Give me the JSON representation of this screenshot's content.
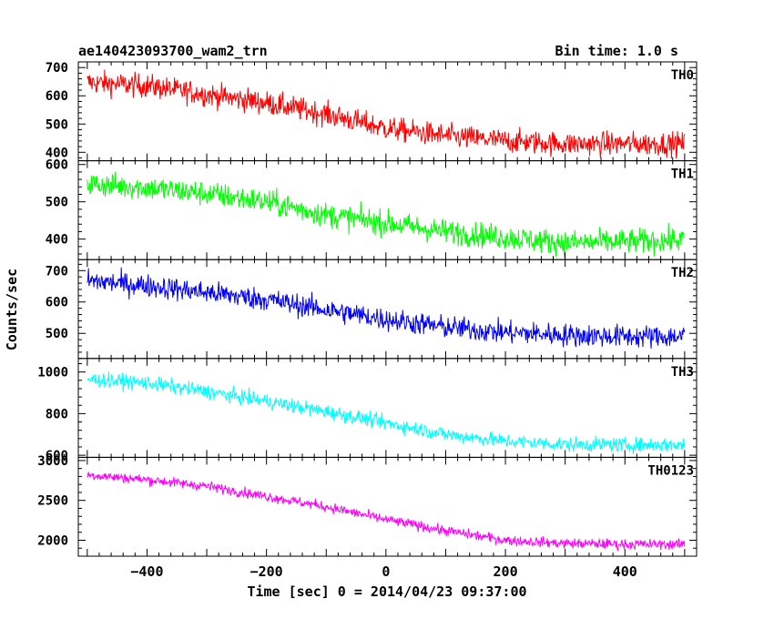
{
  "header": {
    "title": "ae140423093700_wam2_trn",
    "bin_time": "Bin time: 1.0 s"
  },
  "chart_data": {
    "type": "line",
    "xlabel": "Time [sec] 0 = 2014/04/23 09:37:00",
    "ylabel": "Counts/sec",
    "xlim": [
      -515,
      520
    ],
    "x_ticks": [
      -400,
      -200,
      0,
      200,
      400
    ],
    "x_tick_labels": [
      "−400",
      "−200",
      "0",
      "200",
      "400"
    ],
    "x_range": [
      -500,
      500
    ],
    "bin_time_s": 1.0,
    "panels": [
      {
        "name": "TH0",
        "color": "#ff0000",
        "ylim": [
          370,
          720
        ],
        "y_ticks": [
          400,
          500,
          600,
          700
        ],
        "trend": {
          "t": [
            -500,
            -400,
            -300,
            -200,
            -100,
            0,
            100,
            200,
            300,
            400,
            500
          ],
          "counts": [
            648,
            635,
            605,
            575,
            535,
            485,
            458,
            440,
            430,
            430,
            430
          ]
        },
        "noise": 30
      },
      {
        "name": "TH1",
        "color": "#00ff00",
        "ylim": [
          345,
          610
        ],
        "y_ticks": [
          400,
          500,
          600
        ],
        "trend": {
          "t": [
            -500,
            -400,
            -300,
            -200,
            -100,
            0,
            100,
            200,
            300,
            400,
            500
          ],
          "counts": [
            548,
            538,
            522,
            500,
            465,
            443,
            420,
            405,
            390,
            393,
            398
          ]
        },
        "noise": 24
      },
      {
        "name": "TH2",
        "color": "#0000ff",
        "ylim": [
          420,
          735
        ],
        "y_ticks": [
          500,
          600,
          700
        ],
        "trend": {
          "t": [
            -500,
            -400,
            -300,
            -200,
            -100,
            0,
            100,
            200,
            300,
            400,
            500
          ],
          "counts": [
            668,
            652,
            630,
            608,
            575,
            545,
            520,
            503,
            495,
            490,
            490
          ]
        },
        "noise": 26
      },
      {
        "name": "TH3",
        "color": "#00ffff",
        "ylim": [
          590,
          1065
        ],
        "y_ticks": [
          600,
          800,
          1000
        ],
        "trend": {
          "t": [
            -500,
            -400,
            -300,
            -200,
            -100,
            0,
            100,
            200,
            300,
            400,
            500
          ],
          "counts": [
            965,
            948,
            905,
            860,
            810,
            755,
            700,
            668,
            652,
            650,
            650
          ]
        },
        "noise": 25
      },
      {
        "name": "TH0123",
        "color": "#ff00ff",
        "ylim": [
          1800,
          3040
        ],
        "y_ticks": [
          2000,
          2500,
          3000
        ],
        "trend": {
          "t": [
            -500,
            -400,
            -300,
            -200,
            -100,
            0,
            100,
            200,
            300,
            400,
            500
          ],
          "counts": [
            2820,
            2760,
            2680,
            2550,
            2420,
            2260,
            2120,
            2000,
            1960,
            1950,
            1950
          ]
        },
        "noise": 45
      }
    ]
  }
}
